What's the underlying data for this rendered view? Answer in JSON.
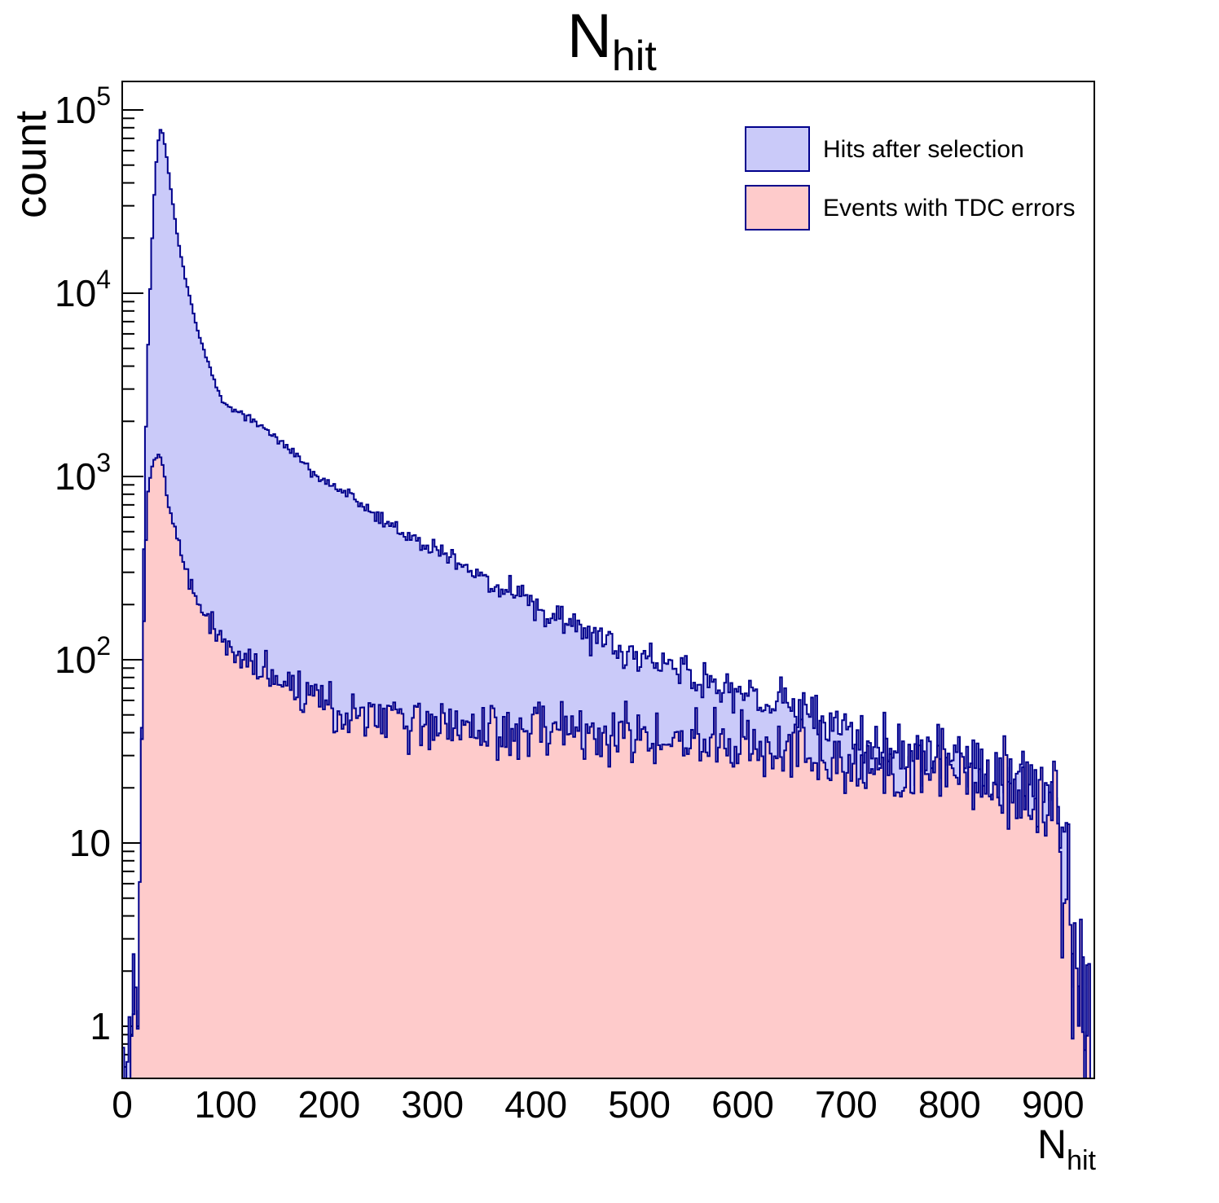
{
  "title": {
    "base": "N",
    "sub": "hit"
  },
  "axes": {
    "y_label": "count",
    "x_label": {
      "base": "N",
      "sub": "hit"
    },
    "x_ticks": [
      0,
      100,
      200,
      300,
      400,
      500,
      600,
      700,
      800,
      900
    ],
    "y_ticks": [
      {
        "value": 1,
        "base": "1",
        "exp": ""
      },
      {
        "value": 10,
        "base": "10",
        "exp": ""
      },
      {
        "value": 100,
        "base": "10",
        "exp": "2"
      },
      {
        "value": 1000,
        "base": "10",
        "exp": "3"
      },
      {
        "value": 10000,
        "base": "10",
        "exp": "4"
      },
      {
        "value": 100000,
        "base": "10",
        "exp": "5"
      }
    ]
  },
  "legend": {
    "items": [
      {
        "label": "Hits after selection"
      },
      {
        "label": "Events with TDC errors"
      }
    ]
  },
  "chart_data": {
    "type": "histogram-step",
    "title": "N_hit",
    "xlabel": "N_hit",
    "ylabel": "count",
    "x_range": [
      0,
      940
    ],
    "y_scale": "log",
    "y_range": [
      0.52,
      143000
    ],
    "bin_width": 2,
    "grid": false,
    "legend_position": "top-right",
    "noise_seed": 20240613,
    "series": [
      {
        "name": "Hits after selection",
        "fill_color": "#cacaf9",
        "line_color": "#00008c",
        "anchors": [
          [
            1,
            0.7
          ],
          [
            2,
            0.4
          ],
          [
            10,
            0.4
          ],
          [
            11,
            4
          ],
          [
            13,
            4
          ],
          [
            14,
            0.4
          ],
          [
            16,
            0.5
          ],
          [
            17,
            1.2
          ],
          [
            18,
            8
          ],
          [
            19,
            40
          ],
          [
            20,
            160
          ],
          [
            21,
            420
          ],
          [
            22,
            950
          ],
          [
            23,
            1900
          ],
          [
            24,
            3400
          ],
          [
            25,
            5200
          ],
          [
            26,
            7400
          ],
          [
            27,
            10500
          ],
          [
            28,
            14500
          ],
          [
            29,
            20000
          ],
          [
            30,
            27000
          ],
          [
            31,
            34000
          ],
          [
            32,
            43000
          ],
          [
            33,
            52000
          ],
          [
            34,
            61000
          ],
          [
            35,
            68500
          ],
          [
            36,
            74500
          ],
          [
            37,
            78000
          ],
          [
            38,
            77000
          ],
          [
            39,
            74500
          ],
          [
            40,
            70000
          ],
          [
            41,
            65000
          ],
          [
            42,
            60000
          ],
          [
            43,
            55000
          ],
          [
            44,
            50000
          ],
          [
            45,
            45500
          ],
          [
            46,
            41000
          ],
          [
            48,
            33800
          ],
          [
            50,
            27800
          ],
          [
            52,
            23200
          ],
          [
            54,
            19700
          ],
          [
            56,
            17000
          ],
          [
            58,
            14800
          ],
          [
            60,
            13000
          ],
          [
            63,
            10800
          ],
          [
            66,
            9100
          ],
          [
            70,
            7300
          ],
          [
            74,
            6000
          ],
          [
            78,
            5050
          ],
          [
            82,
            4350
          ],
          [
            86,
            3750
          ],
          [
            90,
            3250
          ],
          [
            95,
            2780
          ],
          [
            100,
            2430
          ],
          [
            110,
            2270
          ],
          [
            120,
            2120
          ],
          [
            130,
            1960
          ],
          [
            140,
            1800
          ],
          [
            150,
            1600
          ],
          [
            160,
            1440
          ],
          [
            170,
            1300
          ],
          [
            180,
            1130
          ],
          [
            190,
            1020
          ],
          [
            200,
            920
          ],
          [
            210,
            840
          ],
          [
            220,
            780
          ],
          [
            230,
            710
          ],
          [
            240,
            650
          ],
          [
            250,
            590
          ],
          [
            260,
            550
          ],
          [
            270,
            505
          ],
          [
            280,
            470
          ],
          [
            290,
            430
          ],
          [
            300,
            405
          ],
          [
            310,
            380
          ],
          [
            320,
            350
          ],
          [
            330,
            325
          ],
          [
            340,
            300
          ],
          [
            350,
            270
          ],
          [
            360,
            255
          ],
          [
            370,
            240
          ],
          [
            380,
            228
          ],
          [
            390,
            205
          ],
          [
            400,
            185
          ],
          [
            410,
            175
          ],
          [
            420,
            166
          ],
          [
            430,
            158
          ],
          [
            440,
            150
          ],
          [
            450,
            137
          ],
          [
            460,
            131
          ],
          [
            470,
            125
          ],
          [
            480,
            119
          ],
          [
            490,
            113
          ],
          [
            500,
            104
          ],
          [
            510,
            99
          ],
          [
            520,
            95
          ],
          [
            530,
            91
          ],
          [
            540,
            87
          ],
          [
            550,
            81
          ],
          [
            560,
            78
          ],
          [
            570,
            75
          ],
          [
            580,
            72
          ],
          [
            590,
            67
          ],
          [
            600,
            63
          ],
          [
            610,
            61
          ],
          [
            620,
            59
          ],
          [
            630,
            57
          ],
          [
            640,
            55
          ],
          [
            650,
            52
          ],
          [
            660,
            50
          ],
          [
            670,
            48
          ],
          [
            680,
            46
          ],
          [
            690,
            44
          ],
          [
            700,
            40
          ],
          [
            720,
            36
          ],
          [
            740,
            33
          ],
          [
            760,
            30
          ],
          [
            780,
            28
          ],
          [
            800,
            26
          ],
          [
            820,
            24
          ],
          [
            840,
            22
          ],
          [
            860,
            21
          ],
          [
            880,
            20
          ],
          [
            890,
            19
          ],
          [
            900,
            17
          ],
          [
            905,
            15
          ],
          [
            910,
            12
          ],
          [
            913,
            8
          ],
          [
            915,
            5
          ],
          [
            917,
            2
          ],
          [
            919,
            5
          ],
          [
            921,
            0.6
          ],
          [
            924,
            5
          ],
          [
            926,
            0.6
          ],
          [
            929,
            2
          ],
          [
            931,
            1
          ],
          [
            933,
            2
          ],
          [
            935,
            0.6
          ]
        ]
      },
      {
        "name": "Events with TDC errors",
        "fill_color": "#fecbcb",
        "line_color": "#00008c",
        "anchors": [
          [
            9,
            0.6
          ],
          [
            10,
            2
          ],
          [
            12,
            2.5
          ],
          [
            14,
            3
          ],
          [
            16,
            4
          ],
          [
            17,
            6
          ],
          [
            18,
            11
          ],
          [
            19,
            28
          ],
          [
            20,
            75
          ],
          [
            21,
            165
          ],
          [
            22,
            300
          ],
          [
            23,
            480
          ],
          [
            24,
            660
          ],
          [
            25,
            810
          ],
          [
            26,
            930
          ],
          [
            28,
            1080
          ],
          [
            30,
            1200
          ],
          [
            32,
            1280
          ],
          [
            34,
            1320
          ],
          [
            36,
            1335
          ],
          [
            38,
            1330
          ],
          [
            40,
            1100
          ],
          [
            42,
            930
          ],
          [
            44,
            800
          ],
          [
            46,
            690
          ],
          [
            48,
            600
          ],
          [
            50,
            545
          ],
          [
            53,
            470
          ],
          [
            56,
            405
          ],
          [
            60,
            330
          ],
          [
            65,
            268
          ],
          [
            70,
            228
          ],
          [
            75,
            200
          ],
          [
            80,
            180
          ],
          [
            85,
            165
          ],
          [
            90,
            152
          ],
          [
            95,
            140
          ],
          [
            100,
            130
          ],
          [
            110,
            112
          ],
          [
            120,
            100
          ],
          [
            130,
            91
          ],
          [
            140,
            84
          ],
          [
            150,
            79
          ],
          [
            160,
            74
          ],
          [
            170,
            70
          ],
          [
            180,
            66
          ],
          [
            190,
            63
          ],
          [
            200,
            61
          ],
          [
            210,
            58
          ],
          [
            220,
            56
          ],
          [
            230,
            54
          ],
          [
            240,
            53
          ],
          [
            250,
            51
          ],
          [
            260,
            50
          ],
          [
            270,
            49
          ],
          [
            280,
            48
          ],
          [
            290,
            47
          ],
          [
            300,
            47
          ],
          [
            320,
            45
          ],
          [
            340,
            44
          ],
          [
            360,
            43
          ],
          [
            380,
            42
          ],
          [
            400,
            42
          ],
          [
            420,
            41
          ],
          [
            440,
            40
          ],
          [
            460,
            40
          ],
          [
            480,
            39
          ],
          [
            500,
            38
          ],
          [
            520,
            38
          ],
          [
            540,
            37
          ],
          [
            560,
            36
          ],
          [
            580,
            35
          ],
          [
            600,
            34
          ],
          [
            620,
            33
          ],
          [
            640,
            32
          ],
          [
            660,
            31
          ],
          [
            680,
            30
          ],
          [
            700,
            28
          ],
          [
            720,
            27
          ],
          [
            740,
            26
          ],
          [
            760,
            25
          ],
          [
            780,
            24
          ],
          [
            800,
            23
          ],
          [
            820,
            22
          ],
          [
            840,
            21
          ],
          [
            860,
            19
          ],
          [
            880,
            17
          ],
          [
            890,
            16
          ],
          [
            895,
            15
          ],
          [
            900,
            14
          ],
          [
            903,
            16
          ],
          [
            906,
            10
          ],
          [
            909,
            5
          ],
          [
            912,
            4
          ],
          [
            915,
            5
          ],
          [
            917,
            4
          ],
          [
            919,
            0.6
          ],
          [
            921,
            5
          ],
          [
            923,
            0.6
          ],
          [
            926,
            2
          ],
          [
            928,
            1
          ],
          [
            931,
            1
          ],
          [
            934,
            1
          ],
          [
            936,
            0.6
          ]
        ]
      }
    ]
  }
}
